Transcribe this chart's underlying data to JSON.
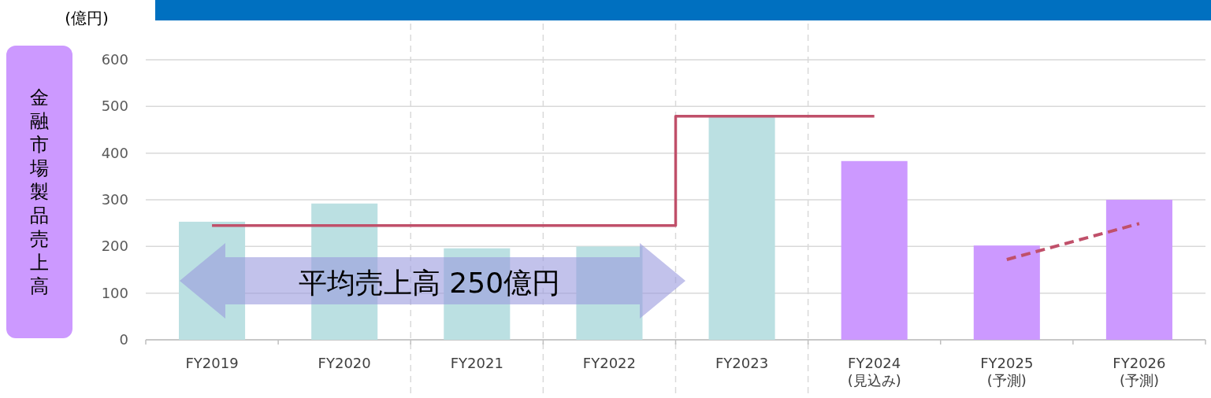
{
  "chart_data": {
    "type": "bar",
    "ylabel": "金融市場製品売上高",
    "annotations": [
      "(億円)",
      "平均売上高  250億円"
    ],
    "categories": [
      "FY2019",
      "FY2020",
      "FY2021",
      "FY2022",
      "FY2023",
      "FY2024\n(見込み)",
      "FY2025\n(予測)",
      "FY2026\n(予測)"
    ],
    "series": [
      {
        "values": [
          253,
          292,
          196,
          200,
          479,
          383,
          202,
          300
        ],
        "colors": [
          "#bbe0e2",
          "#bbe0e2",
          "#bbe0e2",
          "#bbe0e2",
          "#bbe0e2",
          "#cc99ff",
          "#cc99ff",
          "#cc99ff"
        ]
      },
      {
        "type": "step",
        "values": [
          245,
          245,
          245,
          245,
          479,
          479,
          null,
          null
        ],
        "color": "#c0506a",
        "line_style": "solid"
      },
      {
        "type": "line",
        "values": [
          null,
          null,
          null,
          null,
          null,
          null,
          172,
          249
        ],
        "color": "#c0506a",
        "line_style": "dashed"
      }
    ],
    "ylim": [
      0,
      600
    ],
    "yticks": [
      0,
      100,
      200,
      300,
      400,
      500,
      600
    ],
    "grid": "y"
  }
}
